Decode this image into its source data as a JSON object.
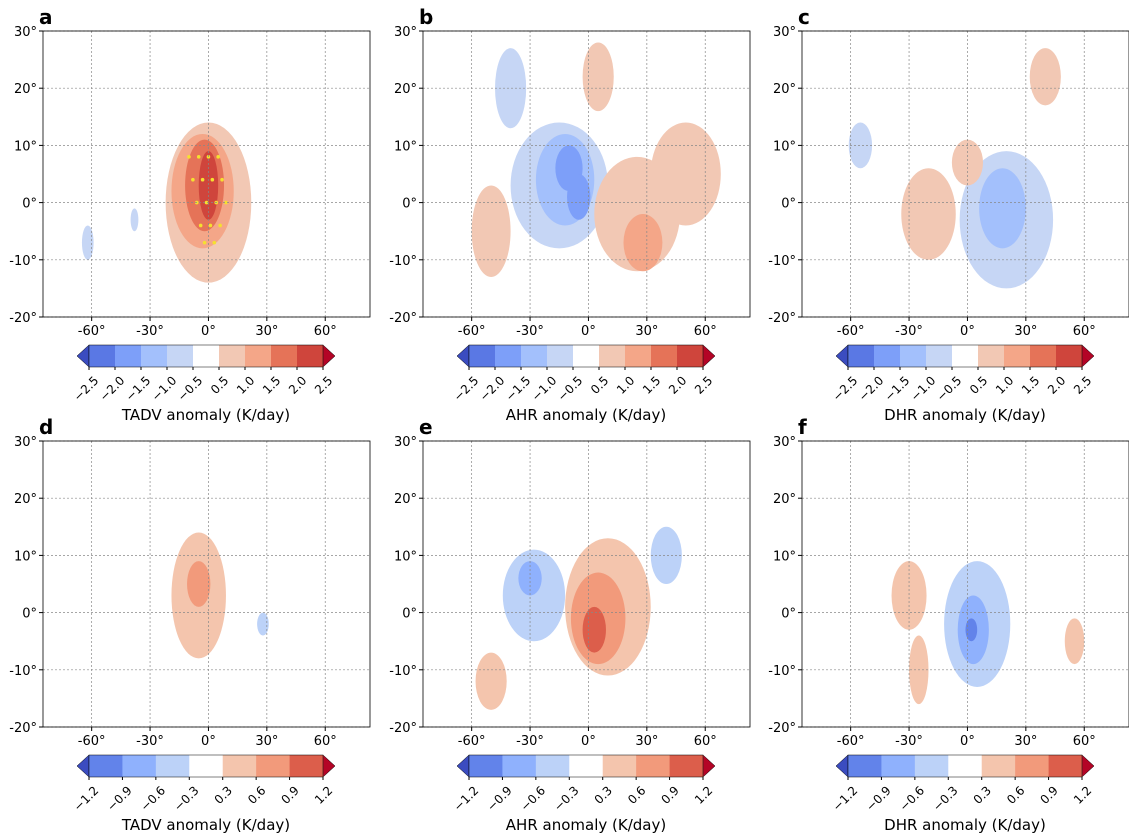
{
  "chart_data": [
    {
      "type": "contour",
      "panel": "a",
      "colorbar_label": "TADV anomaly (K/day)",
      "xlim": [
        -85,
        83
      ],
      "ylim": [
        -20,
        30
      ],
      "xticks": [
        {
          "value": -60,
          "label": "-60°"
        },
        {
          "value": -30,
          "label": "-30°"
        },
        {
          "value": 0,
          "label": "0°"
        },
        {
          "value": 30,
          "label": "30°"
        },
        {
          "value": 60,
          "label": "60°"
        }
      ],
      "yticks": [
        {
          "value": -20,
          "label": "-20°"
        },
        {
          "value": -10,
          "label": "-10°"
        },
        {
          "value": 0,
          "label": "0°"
        },
        {
          "value": 10,
          "label": "10°"
        },
        {
          "value": 20,
          "label": "20°"
        },
        {
          "value": 30,
          "label": "30°"
        }
      ],
      "grid": true,
      "levels": [
        {
          "value": -2.5,
          "label": "−2.5"
        },
        {
          "value": -2.0,
          "label": "−2.0"
        },
        {
          "value": -1.5,
          "label": "−1.5"
        },
        {
          "value": -1.0,
          "label": "−1.0"
        },
        {
          "value": -0.5,
          "label": "−0.5"
        },
        {
          "value": 0.5,
          "label": "0.5"
        },
        {
          "value": 1.0,
          "label": "1.0"
        },
        {
          "value": 1.5,
          "label": "1.5"
        },
        {
          "value": 2.0,
          "label": "2.0"
        },
        {
          "value": 2.5,
          "label": "2.5"
        }
      ],
      "colors": [
        "#5a78e4",
        "#7d9ff9",
        "#a3c0fc",
        "#c6d6f5",
        "#ffffff",
        "#f2c8b4",
        "#f4a688",
        "#e57358",
        "#cf453c"
      ],
      "extend_colors": [
        "#3b4cc0",
        "#b40426"
      ]
    },
    {
      "type": "contour",
      "panel": "b",
      "colorbar_label": "AHR anomaly (K/day)",
      "xlim": [
        -85,
        83
      ],
      "ylim": [
        -20,
        30
      ],
      "xticks": [
        {
          "value": -60,
          "label": "-60°"
        },
        {
          "value": -30,
          "label": "-30°"
        },
        {
          "value": 0,
          "label": "0°"
        },
        {
          "value": 30,
          "label": "30°"
        },
        {
          "value": 60,
          "label": "60°"
        }
      ],
      "yticks": [
        {
          "value": -20,
          "label": "-20°"
        },
        {
          "value": -10,
          "label": "-10°"
        },
        {
          "value": 0,
          "label": "0°"
        },
        {
          "value": 10,
          "label": "10°"
        },
        {
          "value": 20,
          "label": "20°"
        },
        {
          "value": 30,
          "label": "30°"
        }
      ],
      "grid": true,
      "levels": [
        {
          "value": -2.5,
          "label": "−2.5"
        },
        {
          "value": -2.0,
          "label": "−2.0"
        },
        {
          "value": -1.5,
          "label": "−1.5"
        },
        {
          "value": -1.0,
          "label": "−1.0"
        },
        {
          "value": -0.5,
          "label": "−0.5"
        },
        {
          "value": 0.5,
          "label": "0.5"
        },
        {
          "value": 1.0,
          "label": "1.0"
        },
        {
          "value": 1.5,
          "label": "1.5"
        },
        {
          "value": 2.0,
          "label": "2.0"
        },
        {
          "value": 2.5,
          "label": "2.5"
        }
      ],
      "colors": [
        "#5a78e4",
        "#7d9ff9",
        "#a3c0fc",
        "#c6d6f5",
        "#ffffff",
        "#f2c8b4",
        "#f4a688",
        "#e57358",
        "#cf453c"
      ],
      "extend_colors": [
        "#3b4cc0",
        "#b40426"
      ]
    },
    {
      "type": "contour",
      "panel": "c",
      "colorbar_label": "DHR anomaly (K/day)",
      "xlim": [
        -85,
        83
      ],
      "ylim": [
        -20,
        30
      ],
      "xticks": [
        {
          "value": -60,
          "label": "-60°"
        },
        {
          "value": -30,
          "label": "-30°"
        },
        {
          "value": 0,
          "label": "0°"
        },
        {
          "value": 30,
          "label": "30°"
        },
        {
          "value": 60,
          "label": "60°"
        }
      ],
      "yticks": [
        {
          "value": -20,
          "label": "-20°"
        },
        {
          "value": -10,
          "label": "-10°"
        },
        {
          "value": 0,
          "label": "0°"
        },
        {
          "value": 10,
          "label": "10°"
        },
        {
          "value": 20,
          "label": "20°"
        },
        {
          "value": 30,
          "label": "30°"
        }
      ],
      "grid": true,
      "levels": [
        {
          "value": -2.5,
          "label": "−2.5"
        },
        {
          "value": -2.0,
          "label": "−2.0"
        },
        {
          "value": -1.5,
          "label": "−1.5"
        },
        {
          "value": -1.0,
          "label": "−1.0"
        },
        {
          "value": -0.5,
          "label": "−0.5"
        },
        {
          "value": 0.5,
          "label": "0.5"
        },
        {
          "value": 1.0,
          "label": "1.0"
        },
        {
          "value": 1.5,
          "label": "1.5"
        },
        {
          "value": 2.0,
          "label": "2.0"
        },
        {
          "value": 2.5,
          "label": "2.5"
        }
      ],
      "colors": [
        "#5a78e4",
        "#7d9ff9",
        "#a3c0fc",
        "#c6d6f5",
        "#ffffff",
        "#f2c8b4",
        "#f4a688",
        "#e57358",
        "#cf453c"
      ],
      "extend_colors": [
        "#3b4cc0",
        "#b40426"
      ]
    },
    {
      "type": "contour",
      "panel": "d",
      "colorbar_label": "TADV anomaly (K/day)",
      "xlim": [
        -85,
        83
      ],
      "ylim": [
        -20,
        30
      ],
      "xticks": [
        {
          "value": -60,
          "label": "-60°"
        },
        {
          "value": -30,
          "label": "-30°"
        },
        {
          "value": 0,
          "label": "0°"
        },
        {
          "value": 30,
          "label": "30°"
        },
        {
          "value": 60,
          "label": "60°"
        }
      ],
      "yticks": [
        {
          "value": -20,
          "label": "-20°"
        },
        {
          "value": -10,
          "label": "-10°"
        },
        {
          "value": 0,
          "label": "0°"
        },
        {
          "value": 10,
          "label": "10°"
        },
        {
          "value": 20,
          "label": "20°"
        },
        {
          "value": 30,
          "label": "30°"
        }
      ],
      "grid": true,
      "levels": [
        {
          "value": -1.2,
          "label": "−1.2"
        },
        {
          "value": -0.9,
          "label": "−0.9"
        },
        {
          "value": -0.6,
          "label": "−0.6"
        },
        {
          "value": -0.3,
          "label": "−0.3"
        },
        {
          "value": 0.3,
          "label": "0.3"
        },
        {
          "value": 0.6,
          "label": "0.6"
        },
        {
          "value": 0.9,
          "label": "0.9"
        },
        {
          "value": 1.2,
          "label": "1.2"
        }
      ],
      "colors": [
        "#6283ea",
        "#8fb1fd",
        "#bcd2f8",
        "#ffffff",
        "#f4c5ad",
        "#f29a7b",
        "#dc5e4b"
      ],
      "extend_colors": [
        "#3b4cc0",
        "#b40426"
      ]
    },
    {
      "type": "contour",
      "panel": "e",
      "colorbar_label": "AHR anomaly (K/day)",
      "xlim": [
        -85,
        83
      ],
      "ylim": [
        -20,
        30
      ],
      "xticks": [
        {
          "value": -60,
          "label": "-60°"
        },
        {
          "value": -30,
          "label": "-30°"
        },
        {
          "value": 0,
          "label": "0°"
        },
        {
          "value": 30,
          "label": "30°"
        },
        {
          "value": 60,
          "label": "60°"
        }
      ],
      "yticks": [
        {
          "value": -20,
          "label": "-20°"
        },
        {
          "value": -10,
          "label": "-10°"
        },
        {
          "value": 0,
          "label": "0°"
        },
        {
          "value": 10,
          "label": "10°"
        },
        {
          "value": 20,
          "label": "20°"
        },
        {
          "value": 30,
          "label": "30°"
        }
      ],
      "grid": true,
      "levels": [
        {
          "value": -1.2,
          "label": "−1.2"
        },
        {
          "value": -0.9,
          "label": "−0.9"
        },
        {
          "value": -0.6,
          "label": "−0.6"
        },
        {
          "value": -0.3,
          "label": "−0.3"
        },
        {
          "value": 0.3,
          "label": "0.3"
        },
        {
          "value": 0.6,
          "label": "0.6"
        },
        {
          "value": 0.9,
          "label": "0.9"
        },
        {
          "value": 1.2,
          "label": "1.2"
        }
      ],
      "colors": [
        "#6283ea",
        "#8fb1fd",
        "#bcd2f8",
        "#ffffff",
        "#f4c5ad",
        "#f29a7b",
        "#dc5e4b"
      ],
      "extend_colors": [
        "#3b4cc0",
        "#b40426"
      ]
    },
    {
      "type": "contour",
      "panel": "f",
      "colorbar_label": "DHR anomaly (K/day)",
      "xlim": [
        -85,
        83
      ],
      "ylim": [
        -20,
        30
      ],
      "xticks": [
        {
          "value": -60,
          "label": "-60°"
        },
        {
          "value": -30,
          "label": "-30°"
        },
        {
          "value": 0,
          "label": "0°"
        },
        {
          "value": 30,
          "label": "30°"
        },
        {
          "value": 60,
          "label": "60°"
        }
      ],
      "yticks": [
        {
          "value": -20,
          "label": "-20°"
        },
        {
          "value": -10,
          "label": "-10°"
        },
        {
          "value": 0,
          "label": "0°"
        },
        {
          "value": 10,
          "label": "10°"
        },
        {
          "value": 20,
          "label": "20°"
        },
        {
          "value": 30,
          "label": "30°"
        }
      ],
      "grid": true,
      "levels": [
        {
          "value": -1.2,
          "label": "−1.2"
        },
        {
          "value": -0.9,
          "label": "−0.9"
        },
        {
          "value": -0.6,
          "label": "−0.6"
        },
        {
          "value": -0.3,
          "label": "−0.3"
        },
        {
          "value": 0.3,
          "label": "0.3"
        },
        {
          "value": 0.6,
          "label": "0.6"
        },
        {
          "value": 0.9,
          "label": "0.9"
        },
        {
          "value": 1.2,
          "label": "1.2"
        }
      ],
      "colors": [
        "#6283ea",
        "#8fb1fd",
        "#bcd2f8",
        "#ffffff",
        "#f4c5ad",
        "#f29a7b",
        "#dc5e4b"
      ],
      "extend_colors": [
        "#3b4cc0",
        "#b40426"
      ]
    }
  ]
}
